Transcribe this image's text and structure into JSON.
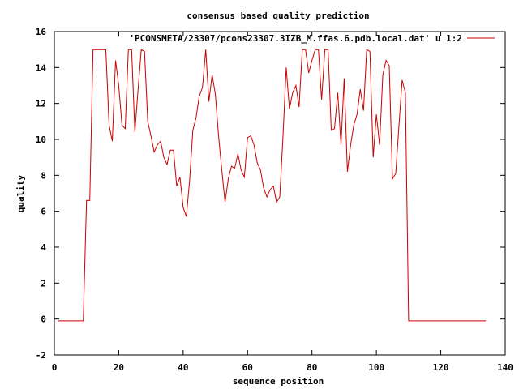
{
  "chart_data": {
    "type": "line",
    "title": "consensus based quality prediction",
    "xlabel": "sequence position",
    "ylabel": "quality",
    "xlim": [
      0,
      140
    ],
    "ylim": [
      -2,
      16
    ],
    "xticks": [
      0,
      20,
      40,
      60,
      80,
      100,
      120,
      140
    ],
    "yticks": [
      -2,
      0,
      2,
      4,
      6,
      8,
      10,
      12,
      14,
      16
    ],
    "grid": false,
    "legend_position": "top-right",
    "series": [
      {
        "name": "'PCONSMETA/23307/pcons23307.3IZB_M.ffas.6.pdb.local.dat' u 1:2",
        "color": "#cc0000",
        "x": [
          1,
          2,
          3,
          4,
          5,
          6,
          7,
          8,
          9,
          10,
          11,
          12,
          13,
          14,
          15,
          16,
          17,
          18,
          19,
          20,
          21,
          22,
          23,
          24,
          25,
          26,
          27,
          28,
          29,
          30,
          31,
          32,
          33,
          34,
          35,
          36,
          37,
          38,
          39,
          40,
          41,
          42,
          43,
          44,
          45,
          46,
          47,
          48,
          49,
          50,
          51,
          52,
          53,
          54,
          55,
          56,
          57,
          58,
          59,
          60,
          61,
          62,
          63,
          64,
          65,
          66,
          67,
          68,
          69,
          70,
          71,
          72,
          73,
          74,
          75,
          76,
          77,
          78,
          79,
          80,
          81,
          82,
          83,
          84,
          85,
          86,
          87,
          88,
          89,
          90,
          91,
          92,
          93,
          94,
          95,
          96,
          97,
          98,
          99,
          100,
          101,
          102,
          103,
          104,
          105,
          106,
          107,
          108,
          109,
          110,
          111,
          112,
          113,
          114,
          115,
          116,
          117,
          118,
          119,
          120,
          121,
          122,
          123,
          124,
          125,
          126,
          127,
          128,
          129,
          130,
          131,
          132,
          133,
          134
        ],
        "y": [
          -0.1,
          -0.1,
          -0.1,
          -0.1,
          -0.1,
          -0.1,
          -0.1,
          -0.1,
          -0.1,
          6.6,
          6.6,
          15,
          15,
          15,
          15,
          15,
          10.8,
          9.9,
          14.4,
          13,
          10.8,
          10.6,
          15,
          15,
          10.4,
          12.8,
          15,
          14.9,
          11,
          10.2,
          9.3,
          9.7,
          9.9,
          9.0,
          8.6,
          9.4,
          9.4,
          7.4,
          7.9,
          6.2,
          5.7,
          7.7,
          10.5,
          11.2,
          12.4,
          12.9,
          15,
          12.1,
          13.6,
          12.5,
          10.2,
          8.3,
          6.5,
          7.8,
          8.5,
          8.4,
          9.2,
          8.3,
          7.9,
          10.1,
          10.2,
          9.7,
          8.7,
          8.3,
          7.3,
          6.8,
          7.2,
          7.4,
          6.5,
          6.8,
          10.2,
          14.0,
          11.7,
          12.6,
          13.0,
          11.8,
          15,
          15,
          13.7,
          14.4,
          15,
          15,
          12.2,
          15,
          15,
          10.5,
          10.6,
          12.6,
          9.7,
          13.4,
          8.2,
          9.7,
          10.8,
          11.4,
          12.8,
          11.6,
          15,
          14.9,
          9.0,
          11.4,
          9.7,
          13.6,
          14.4,
          14.1,
          7.8,
          8.1,
          10.7,
          13.3,
          12.6,
          -0.1,
          -0.1,
          -0.1,
          -0.1,
          -0.1,
          -0.1,
          -0.1,
          -0.1,
          -0.1,
          -0.1,
          -0.1,
          -0.1,
          -0.1,
          -0.1,
          -0.1,
          -0.1,
          -0.1,
          -0.1,
          -0.1,
          -0.1,
          -0.1,
          -0.1,
          -0.1,
          -0.1,
          -0.1
        ]
      }
    ]
  }
}
